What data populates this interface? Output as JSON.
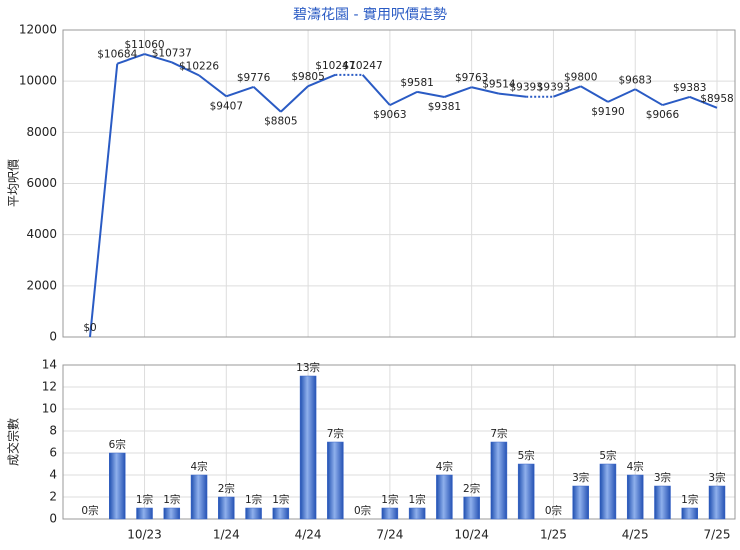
{
  "chart_data": [
    {
      "type": "line",
      "title": "碧濤花園 - 實用呎價走勢",
      "ylabel": "平均呎價",
      "color": "#2a5bc4",
      "values": [
        0,
        10684,
        11060,
        10737,
        10226,
        9407,
        9776,
        8805,
        9805,
        10247,
        10247,
        9063,
        9581,
        9381,
        9763,
        9514,
        9393,
        9393,
        9800,
        9190,
        9683,
        9066,
        9383,
        8958
      ],
      "value_labels": [
        "$0",
        "$10684",
        "$11060",
        "$10737",
        "$10226",
        "$9407",
        "$9776",
        "$8805",
        "$9805",
        "$10247",
        "$10247",
        "$9063",
        "$9581",
        "$9381",
        "$9763",
        "$9514",
        "$9393",
        "$9393",
        "$9800",
        "$9190",
        "$9683",
        "$9066",
        "$9383",
        "$8958"
      ],
      "ylim": [
        0,
        12000
      ],
      "yticks": [
        0,
        2000,
        4000,
        6000,
        8000,
        10000,
        12000
      ],
      "grid": true
    },
    {
      "type": "bar",
      "ylabel": "成交宗數",
      "color": "#3a66c8",
      "categories": [
        null,
        null,
        "10/23",
        null,
        null,
        "1/24",
        null,
        null,
        "4/24",
        null,
        null,
        "7/24",
        null,
        null,
        "10/24",
        null,
        null,
        "1/25",
        null,
        null,
        "4/25",
        null,
        null,
        "7/25"
      ],
      "values": [
        0,
        6,
        1,
        1,
        4,
        2,
        1,
        1,
        13,
        7,
        0,
        1,
        1,
        4,
        2,
        7,
        5,
        0,
        3,
        5,
        4,
        3,
        1,
        3
      ],
      "value_labels": [
        "0宗",
        "6宗",
        "1宗",
        "1宗",
        "4宗",
        "2宗",
        "1宗",
        "1宗",
        "13宗",
        "7宗",
        "0宗",
        "1宗",
        "1宗",
        "4宗",
        "2宗",
        "7宗",
        "5宗",
        "0宗",
        "3宗",
        "5宗",
        "4宗",
        "3宗",
        "1宗",
        "3宗"
      ],
      "ylim": [
        0,
        14
      ],
      "yticks": [
        0,
        2,
        4,
        6,
        8,
        10,
        12,
        14
      ],
      "grid": true
    }
  ]
}
